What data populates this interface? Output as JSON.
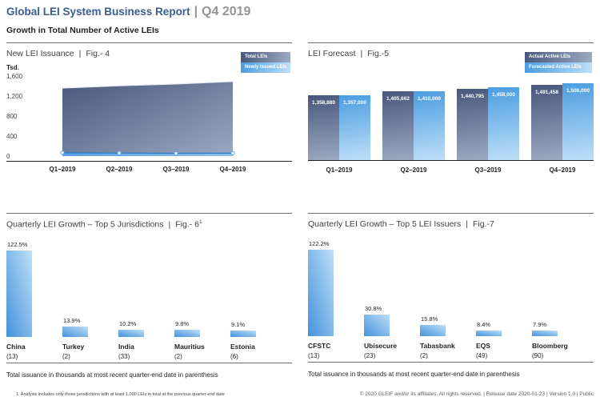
{
  "pipe": "|",
  "header": {
    "title": "Global LEI System Business Report",
    "period": "Q4 2019",
    "subtitle": "Growth in Total Number of Active LEIs"
  },
  "colors": {
    "title_blue": "#375e8f",
    "slate_dark": "#49587b",
    "slate_light": "#9ba9c3",
    "blue_mid": "#4b9de2",
    "blue_pale": "#bedff7",
    "blue_strong": "#4492dc",
    "band_blue": "#58a2e2",
    "band_edge": "#2f7fc8",
    "gray_text": "#939598"
  },
  "chart_data": [
    {
      "id": "fig4",
      "type": "area",
      "title": "New LEI Issuance",
      "fig_label": "Fig.- 4",
      "unit": "Tsd.",
      "categories": [
        "Q1–2019",
        "Q2–2019",
        "Q3–2019",
        "Q4–2019"
      ],
      "series": [
        {
          "name": "Total LEIs",
          "values": [
            1359,
            1406,
            1441,
            1491
          ]
        },
        {
          "name": "Newly Issued LEIs",
          "values": [
            68,
            61,
            55,
            58
          ]
        }
      ],
      "ylim": [
        0,
        1600
      ],
      "yticks": [
        0,
        400,
        800,
        1200,
        1600
      ],
      "legend_position": "top-right",
      "grid": false
    },
    {
      "id": "fig5",
      "type": "bar",
      "title": "LEI Forecast",
      "fig_label": "Fig.-5",
      "categories": [
        "Q1–2019",
        "Q2–2019",
        "Q3–2019",
        "Q4–2019"
      ],
      "series": [
        {
          "name": "Actual Active LEIs",
          "values": [
            1358880,
            1405662,
            1440795,
            1491458
          ]
        },
        {
          "name": "Forecasted Active LEIs",
          "values": [
            1357000,
            1410000,
            1458000,
            1506000
          ]
        }
      ],
      "data_labels": true,
      "legend_position": "top-right",
      "axis_baseline_start": 550000,
      "axis_baseline_span": 1000000
    },
    {
      "id": "fig6",
      "type": "bar",
      "title": "Quarterly LEI Growth – Top 5 Jurisdictions",
      "fig_label": "Fig.- 6",
      "fig_superscript": "1",
      "categories": [
        "China",
        "Turkey",
        "India",
        "Mauritius",
        "Estonia"
      ],
      "values": [
        122.5,
        13.9,
        10.2,
        9.8,
        9.1
      ],
      "totals_parenthesis": [
        13,
        2,
        33,
        2,
        6
      ],
      "unit": "%",
      "caption": "Total issuance in thousands at most recent quarter-end date in parenthesis"
    },
    {
      "id": "fig7",
      "type": "bar",
      "title": "Quarterly LEI Growth – Top 5 LEI Issuers",
      "fig_label": "Fig.-7",
      "categories": [
        "CFSTC",
        "Ubisecure",
        "Tabasbank",
        "EQS",
        "Bloomberg"
      ],
      "values": [
        122.2,
        30.8,
        15.8,
        8.4,
        7.9
      ],
      "totals_parenthesis": [
        13,
        23,
        2,
        49,
        90
      ],
      "unit": "%",
      "caption": "Total issuance in thousands at most recent quarter-end date in parenthesis"
    }
  ],
  "footnote": "1. Analysis includes only those jurisdictions with at least 1,000 LEIs in total at the previous quarter-end date",
  "footer": {
    "copyright": "© 2020 GLEIF and/or its affiliates. All rights reserved.  |  Release date 2020-01-23  |  Version 1.0  |  Public"
  }
}
